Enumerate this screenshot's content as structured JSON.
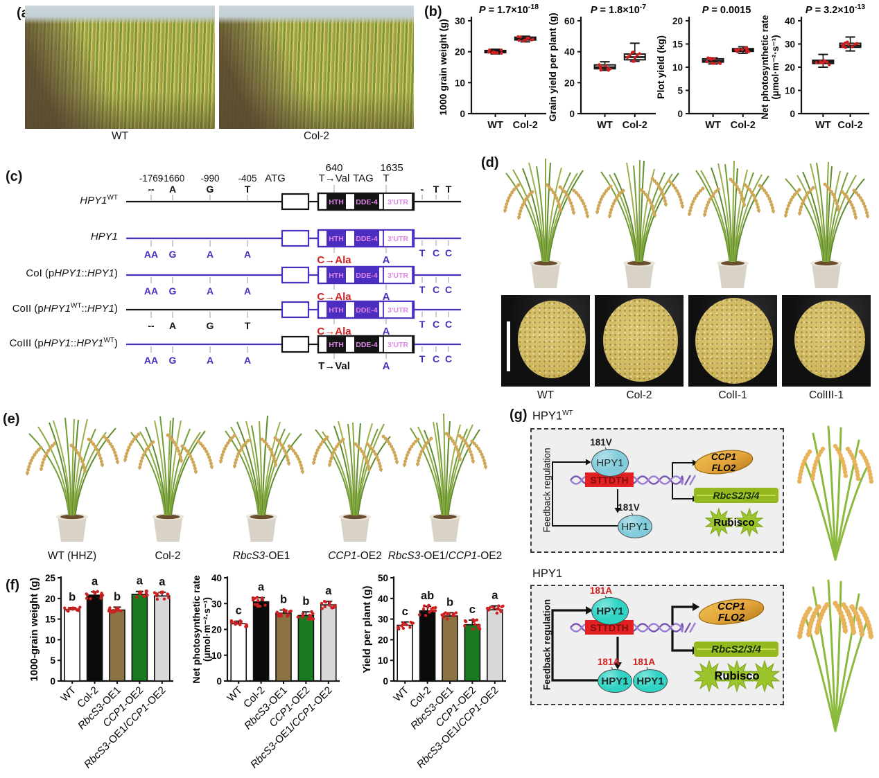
{
  "figure_title": "Rice HPY1 multi-panel figure",
  "colors": {
    "purple": "#4b2dc0",
    "pink": "#df86e8",
    "red": "#d32020",
    "point_red": "#cf2020",
    "bar_colors": [
      "#ffffff",
      "#0b0b0b",
      "#8a7340",
      "#1b7a20",
      "#d8d8d8"
    ],
    "dna_purple": "#7b57b2",
    "dna_purple2": "#9b7fd4",
    "motif_red": "#e32022",
    "motif_text": "#7d0f0f",
    "cyan_top": "#83ccdb",
    "cyan_bottom": "#2fd4c5",
    "grain_orange": "#e2a33c",
    "grain_edge": "#9a6a12",
    "leaf_green": "#94b81e",
    "star_green": "#9cc42c",
    "plant_green": "#8cba3e",
    "panicle_tan": "#e9b35c"
  },
  "panels": {
    "a": {
      "label": "(a)",
      "captions": [
        "WT",
        "Col-2"
      ]
    },
    "b": {
      "label": "(b)"
    },
    "c": {
      "label": "(c)",
      "header": {
        "pos640": "640",
        "pos1635": "1635",
        "positions": [
          "-1769",
          "-1660",
          "-990",
          "-405"
        ],
        "atg": "ATG",
        "tag": "TAG",
        "t1635": "T",
        "wt_promoter_letters": [
          "--",
          "A",
          "G",
          "T"
        ],
        "wt_codon": "T→Val",
        "wt_tail_letters": [
          "-",
          "T",
          "T"
        ]
      },
      "domains": {
        "hth": "HTH",
        "dde": "DDE-4",
        "utr": "3'UTR"
      },
      "rows": [
        {
          "name_html": "<i>HPY1</i><sup>WT</sup>",
          "is_wt": true,
          "promoter": "black",
          "body": "black",
          "tail": "black"
        },
        {
          "name_html": "<i>HPY1</i>",
          "promoter": "purple",
          "body": "purple",
          "tail": "purple",
          "letters": [
            "AA",
            "G",
            "A",
            "A"
          ],
          "letters_color": "purple",
          "codon": "C→Ala",
          "codon_color": "red",
          "utr_letter": "A",
          "tail_letters": [
            "T",
            "C",
            "C"
          ],
          "tail_letters_color": "purple"
        },
        {
          "name_html": "CoI (p<i>HPY1</i>::<i>HPY1</i>)",
          "promoter": "purple",
          "body": "purple",
          "tail": "purple",
          "letters": [
            "AA",
            "G",
            "A",
            "A"
          ],
          "letters_color": "purple",
          "codon": "C→Ala",
          "codon_color": "red",
          "utr_letter": "A",
          "tail_letters": [
            "T",
            "C",
            "C"
          ],
          "tail_letters_color": "purple"
        },
        {
          "name_html": "CoII (p<i>HPY1</i><sup>WT</sup>::<i>HPY1</i>)",
          "promoter": "black",
          "body": "purple",
          "tail": "purple",
          "letters": [
            "--",
            "A",
            "G",
            "T"
          ],
          "letters_color": "black",
          "codon": "C→Ala",
          "codon_color": "red",
          "utr_letter": "A",
          "tail_letters": [
            "T",
            "C",
            "C"
          ],
          "tail_letters_color": "purple"
        },
        {
          "name_html": "CoIII (p<i>HPY1</i>::<i>HPY1</i><sup>WT</sup>)",
          "promoter": "purple",
          "body": "black",
          "tail": "purple",
          "letters": [
            "AA",
            "G",
            "A",
            "A"
          ],
          "letters_color": "purple",
          "codon": "T→Val",
          "codon_color": "black",
          "utr_letter": "A",
          "tail_letters": [
            "T",
            "C",
            "C"
          ],
          "tail_letters_color": "purple"
        }
      ]
    },
    "d": {
      "label": "(d)",
      "captions": [
        "WT",
        "Col-2",
        "ColI-1",
        "ColIII-1"
      ]
    },
    "e": {
      "label": "(e)",
      "captions_html": [
        "WT (HHZ)",
        "Col-2",
        "<i>RbcS3</i>-OE1",
        "<i>CCP1</i>-OE2",
        "<i>RbcS3</i>-OE1/<i>CCP1</i>-OE2"
      ]
    },
    "f": {
      "label": "(f)"
    },
    "g": {
      "label": "(g)",
      "sections": [
        {
          "id": "top",
          "title_html": "HPY1<sup>WT</sup>",
          "feedback": "Feedback regulation",
          "residue": "181V",
          "residue_color": "#1a1a1a",
          "protein": "HPY1",
          "motif": "STTDTH",
          "grain_lines": [
            "CCP1",
            "FLO2"
          ],
          "leaf_label": "RbcS2/3/4",
          "rubisco": "Rubisco",
          "n_proteins_below": 1,
          "n_stars": 2,
          "bold": false
        },
        {
          "id": "bottom",
          "title_html": "HPY1",
          "feedback": "Feedback regulation",
          "residue": "181A",
          "residue_color": "#d32020",
          "protein": "HPY1",
          "motif": "STTDTH",
          "grain_lines": [
            "CCP1",
            "FLO2"
          ],
          "leaf_label": "RbcS2/3/4",
          "rubisco": "Rubisco",
          "n_proteins_below": 2,
          "n_stars": 3,
          "bold": true
        }
      ]
    }
  },
  "bar_common": {
    "categories": [
      "WT",
      "Col-2",
      "RbcS3-OE1",
      "CCP1-OE2",
      "RbcS3-OE1/CCP1-OE2"
    ],
    "cats_rich": [
      [
        {
          "t": "WT"
        }
      ],
      [
        {
          "t": "Col-2"
        }
      ],
      [
        {
          "t": "RbcS3",
          "i": 1
        },
        {
          "t": "-OE1"
        }
      ],
      [
        {
          "t": "CCP1",
          "i": 1
        },
        {
          "t": "-OE2"
        }
      ],
      [
        {
          "t": "RbcS3",
          "i": 1
        },
        {
          "t": "-OE1/"
        },
        {
          "t": "CCP1",
          "i": 1
        },
        {
          "t": "-OE2"
        }
      ]
    ]
  },
  "chart_data": [
    {
      "type": "box",
      "panel": "b",
      "ylabel": "1000 grain weight (g)",
      "p": "P = 1.7×10",
      "p_exp": "-18",
      "categories": [
        "WT",
        "Col-2"
      ],
      "ylim": [
        0,
        30
      ],
      "yticks": [
        0,
        10,
        20,
        30
      ],
      "boxes": [
        {
          "lo": 19.3,
          "q1": 19.7,
          "med": 20.0,
          "q3": 20.4,
          "hi": 20.8
        },
        {
          "lo": 23.2,
          "q1": 23.8,
          "med": 24.2,
          "q3": 24.7,
          "hi": 25.0
        }
      ]
    },
    {
      "type": "box",
      "panel": "b",
      "ylabel": "Grain yield per plant (g)",
      "p": "P = 1.8×10",
      "p_exp": "-7",
      "categories": [
        "WT",
        "Col-2"
      ],
      "ylim": [
        0,
        60
      ],
      "yticks": [
        0,
        20,
        40,
        60
      ],
      "boxes": [
        {
          "lo": 28.0,
          "q1": 29.0,
          "med": 30.0,
          "q3": 31.5,
          "hi": 33.5
        },
        {
          "lo": 33.8,
          "q1": 34.8,
          "med": 36.5,
          "q3": 38.5,
          "hi": 45.5
        }
      ]
    },
    {
      "type": "box",
      "panel": "b",
      "ylabel": "Plot yield (kg)",
      "p": "P = 0.0015",
      "p_exp": "",
      "categories": [
        "WT",
        "Col-2"
      ],
      "ylim": [
        0,
        20
      ],
      "yticks": [
        0,
        5,
        10,
        15,
        20
      ],
      "boxes": [
        {
          "lo": 10.7,
          "q1": 11.1,
          "med": 11.4,
          "q3": 11.8,
          "hi": 12.0
        },
        {
          "lo": 13.0,
          "q1": 13.4,
          "med": 13.7,
          "q3": 14.0,
          "hi": 14.4
        }
      ]
    },
    {
      "type": "box",
      "panel": "b",
      "ylabel": "Net photosynthetic rate",
      "ylabel2": "(μmol·m⁻²·s⁻¹)",
      "p": "P = 3.2×10",
      "p_exp": "-13",
      "categories": [
        "WT",
        "Col-2"
      ],
      "ylim": [
        0,
        40
      ],
      "yticks": [
        0,
        10,
        20,
        30,
        40
      ],
      "boxes": [
        {
          "lo": 20.0,
          "q1": 21.6,
          "med": 22.3,
          "q3": 23.0,
          "hi": 25.5
        },
        {
          "lo": 27.0,
          "q1": 28.6,
          "med": 29.3,
          "q3": 30.3,
          "hi": 33.0
        }
      ]
    },
    {
      "type": "bar",
      "panel": "f",
      "ylabel": "1000-grain weight (g)",
      "ylim": [
        0,
        25
      ],
      "yticks": [
        0,
        5,
        10,
        15,
        20,
        25
      ],
      "values": [
        17.3,
        20.8,
        17.2,
        21.0,
        20.6
      ],
      "errors": [
        0.5,
        0.8,
        0.7,
        0.7,
        0.9
      ],
      "letters": [
        "b",
        "a",
        "b",
        "a",
        "a"
      ]
    },
    {
      "type": "bar",
      "panel": "f",
      "ylabel": "Net photosynthetic rate",
      "ylabel2": "(μmol·m⁻²·s⁻¹)",
      "ylim": [
        0,
        40
      ],
      "yticks": [
        0,
        10,
        20,
        30,
        40
      ],
      "values": [
        22.2,
        30.7,
        26.3,
        25.4,
        29.5
      ],
      "errors": [
        1.0,
        1.6,
        1.2,
        1.4,
        1.4
      ],
      "letters": [
        "c",
        "a",
        "b",
        "b",
        "a"
      ]
    },
    {
      "type": "bar",
      "panel": "f",
      "ylabel": "Yield per plant (g)",
      "ylim": [
        0,
        50
      ],
      "yticks": [
        0,
        10,
        20,
        30,
        40,
        50
      ],
      "values": [
        27.0,
        34.0,
        31.5,
        27.3,
        34.5
      ],
      "errors": [
        1.6,
        2.2,
        1.6,
        2.2,
        1.9
      ],
      "letters": [
        "c",
        "ab",
        "b",
        "c",
        "a"
      ]
    }
  ]
}
